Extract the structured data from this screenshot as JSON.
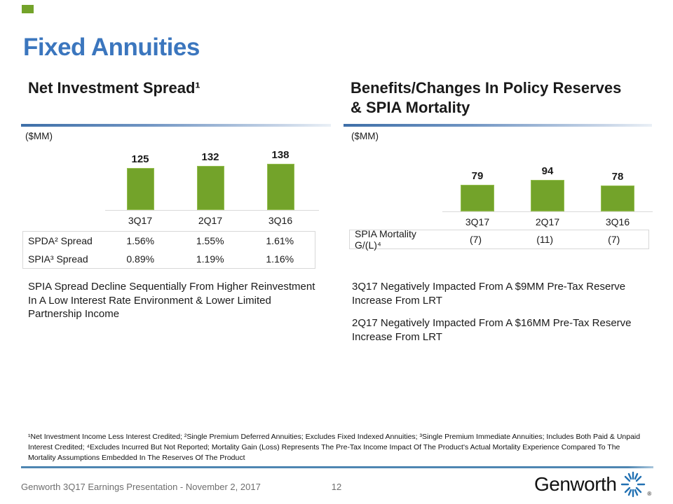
{
  "slide": {
    "title": "Fixed Annuities",
    "page_number": "12",
    "footer_text": "Genworth 3Q17 Earnings Presentation - November 2, 2017",
    "logo_text": "Genworth",
    "registered_mark": "®",
    "footnote": "¹Net Investment Income Less Interest Credited; ²Single Premium Deferred Annuities; Excludes Fixed Indexed Annuities; ³Single Premium Immediate Annuities; Includes Both Paid & Unpaid Interest Credited; ⁴Excludes Incurred But Not Reported; Mortality Gain (Loss) Represents The Pre-Tax Income Impact Of The Product's Actual Mortality Experience Compared To The Mortality Assumptions Embedded In The Reserves Of The Product"
  },
  "left_panel": {
    "heading": "Net Investment Spread¹",
    "units_label": "($MM)",
    "table": {
      "rows": [
        {
          "label": "SPDA² Spread",
          "values": [
            "1.56%",
            "1.55%",
            "1.61%"
          ]
        },
        {
          "label": "SPIA³ Spread",
          "values": [
            "0.89%",
            "1.19%",
            "1.16%"
          ]
        }
      ]
    },
    "note": "SPIA Spread Decline Sequentially From Higher Reinvestment In A Low Interest Rate Environment & Lower Limited Partnership Income"
  },
  "right_panel": {
    "heading_line1": "Benefits/Changes In Policy Reserves",
    "heading_line2": "& SPIA Mortality",
    "units_label": "($MM)",
    "table": {
      "rows": [
        {
          "label": "SPIA Mortality G/(L)⁴",
          "values": [
            "(7)",
            "(11)",
            "(7)"
          ]
        }
      ]
    },
    "notes": [
      "3Q17 Negatively Impacted From A $9MM Pre-Tax Reserve Increase From LRT",
      "2Q17 Negatively Impacted From A $16MM Pre-Tax Reserve Increase From LRT"
    ]
  },
  "chart_data": [
    {
      "type": "bar",
      "title": "Net Investment Spread¹",
      "units": "($MM)",
      "categories": [
        "3Q17",
        "2Q17",
        "3Q16"
      ],
      "values": [
        125,
        132,
        138
      ],
      "bar_color": "#73A32A",
      "data_labels": true,
      "axis": "hidden, baseline only",
      "table_rows": [
        {
          "label": "SPDA² Spread",
          "values": [
            "1.56%",
            "1.55%",
            "1.61%"
          ]
        },
        {
          "label": "SPIA³ Spread",
          "values": [
            "0.89%",
            "1.19%",
            "1.16%"
          ]
        }
      ]
    },
    {
      "type": "bar",
      "title": "Benefits/Changes In Policy Reserves & SPIA Mortality",
      "units": "($MM)",
      "categories": [
        "3Q17",
        "2Q17",
        "3Q16"
      ],
      "values": [
        79,
        94,
        78
      ],
      "bar_color": "#73A32A",
      "data_labels": true,
      "axis": "hidden, baseline only",
      "table_rows": [
        {
          "label": "SPIA Mortality G/(L)⁴",
          "values": [
            "(7)",
            "(11)",
            "(7)"
          ]
        }
      ]
    }
  ],
  "colors": {
    "title_blue": "#3B76BE",
    "bar_green": "#73A32A",
    "rule_gradient_start": "#3E6FA8",
    "footer_rule_blue": "#4E86B2",
    "logo_burst_blue": "#2271B3",
    "footer_gray": "#6E6E6E"
  }
}
